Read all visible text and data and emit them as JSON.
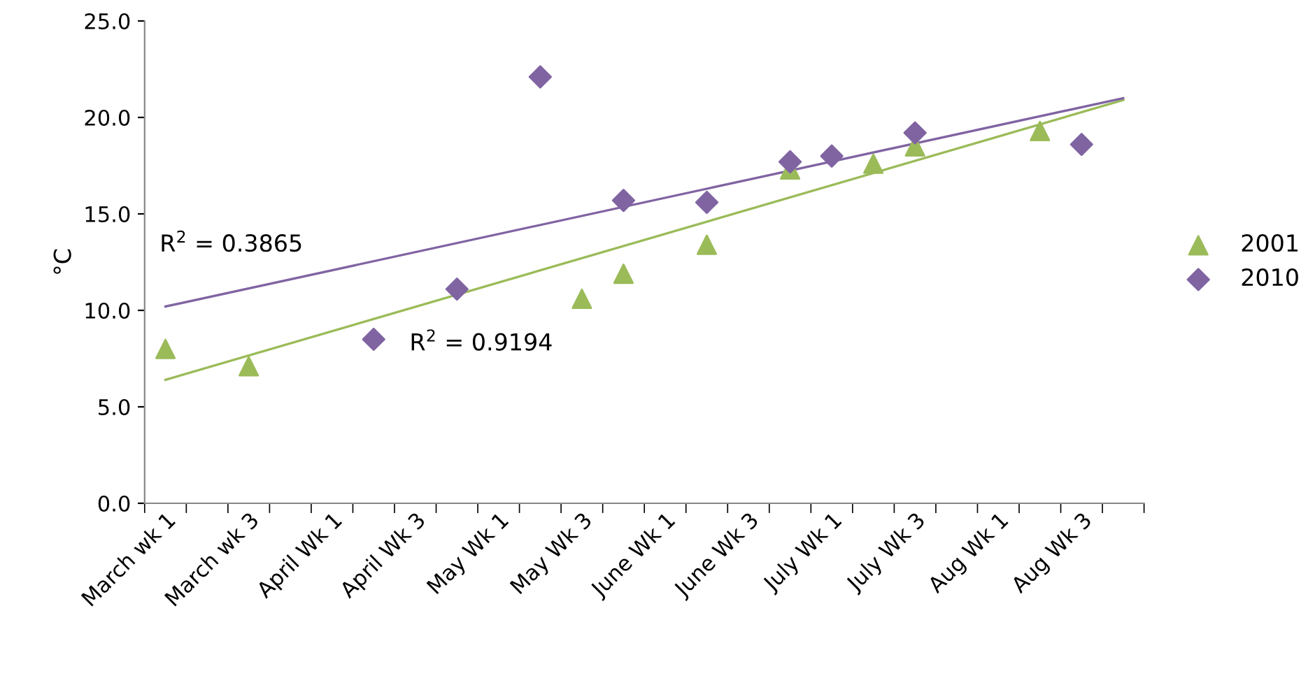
{
  "chart_data": {
    "type": "scatter",
    "ylabel": "°C",
    "categories": [
      "March wk 1",
      null,
      "March wk 3",
      null,
      "April Wk 1",
      null,
      "April Wk 3",
      null,
      "May Wk 1",
      null,
      "May Wk 3",
      null,
      "June Wk 1",
      null,
      "June Wk 3",
      null,
      "July Wk 1",
      null,
      "July Wk 3",
      null,
      "Aug Wk 1",
      null,
      "Aug Wk 3",
      null
    ],
    "series": [
      {
        "name": "2001",
        "marker": "triangle",
        "color": "#9bbb59",
        "values": [
          8.0,
          null,
          7.1,
          null,
          null,
          null,
          null,
          null,
          null,
          null,
          10.6,
          11.9,
          null,
          13.4,
          null,
          17.3,
          null,
          17.6,
          18.5,
          null,
          null,
          19.3,
          null,
          null
        ]
      },
      {
        "name": "2010",
        "marker": "diamond",
        "color": "#8064a2",
        "values": [
          null,
          null,
          null,
          null,
          null,
          8.5,
          null,
          11.1,
          null,
          22.1,
          null,
          15.7,
          null,
          15.6,
          null,
          17.7,
          18.0,
          null,
          19.2,
          null,
          null,
          null,
          18.6,
          null
        ]
      },
      {
        "type": "line",
        "color": "#9bbb59",
        "values": [
          6.4,
          null,
          null,
          null,
          null,
          null,
          null,
          null,
          null,
          null,
          null,
          null,
          null,
          null,
          null,
          null,
          null,
          null,
          null,
          null,
          null,
          null,
          null,
          20.9
        ]
      },
      {
        "type": "line",
        "color": "#8064a2",
        "values": [
          10.2,
          null,
          null,
          null,
          null,
          null,
          null,
          null,
          null,
          null,
          null,
          null,
          null,
          null,
          null,
          null,
          null,
          null,
          null,
          null,
          null,
          null,
          null,
          21.0
        ]
      }
    ],
    "annotations": [
      "R$^{2}$ = 0.3865",
      "R$^{2}$ = 0.9194"
    ],
    "ylim": [
      0,
      25
    ],
    "yticks": [
      {
        "value": 0,
        "label": "0.0"
      },
      {
        "value": 5,
        "label": "5.0"
      },
      {
        "value": 10,
        "label": "10.0"
      },
      {
        "value": 15,
        "label": "15.0"
      },
      {
        "value": 20,
        "label": "20.0"
      },
      {
        "value": 25,
        "label": "25.0"
      }
    ],
    "grid": false,
    "legend": "right"
  }
}
